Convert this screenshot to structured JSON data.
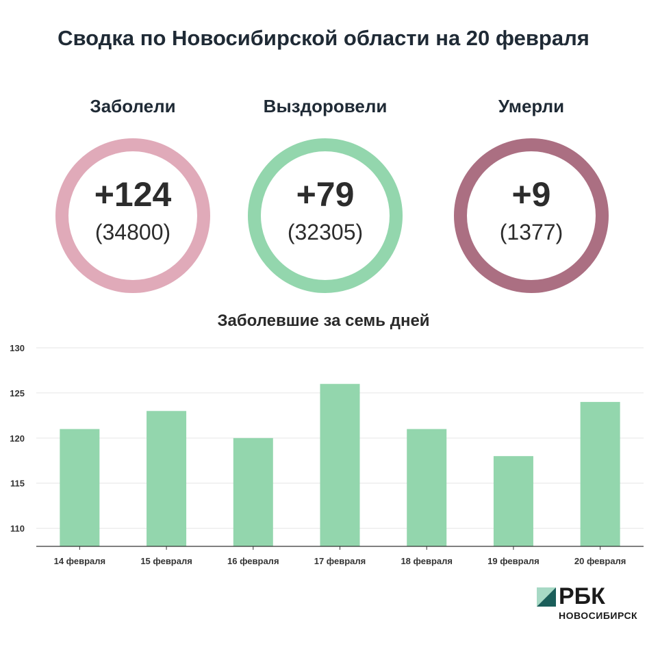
{
  "title": "Сводка по Новосибирской области на 20 февраля",
  "stats": [
    {
      "label": "Заболели",
      "new": "+124",
      "total": "(34800)",
      "color": "#e0aab9"
    },
    {
      "label": "Выздоровели",
      "new": "+79",
      "total": "(32305)",
      "color": "#93d6ad"
    },
    {
      "label": "Умерли",
      "new": "+9",
      "total": "(1377)",
      "color": "#ab6f82"
    }
  ],
  "chart_data": {
    "type": "bar",
    "title": "Заболевшие за семь дней",
    "categories": [
      "14 февраля",
      "15 февраля",
      "16 февраля",
      "17 февраля",
      "18 февраля",
      "19 февраля",
      "20 февраля"
    ],
    "values": [
      121,
      123,
      120,
      126,
      121,
      118,
      124
    ],
    "ylim": [
      108,
      130
    ],
    "yticks": [
      110,
      115,
      120,
      125,
      130
    ],
    "grid": true,
    "bar_color": "#93d6ad"
  },
  "logo": {
    "name": "РБК",
    "city": "НОВОСИБИРСК",
    "color_dark": "#1b5e5a",
    "color_light": "#a7d9c5"
  }
}
